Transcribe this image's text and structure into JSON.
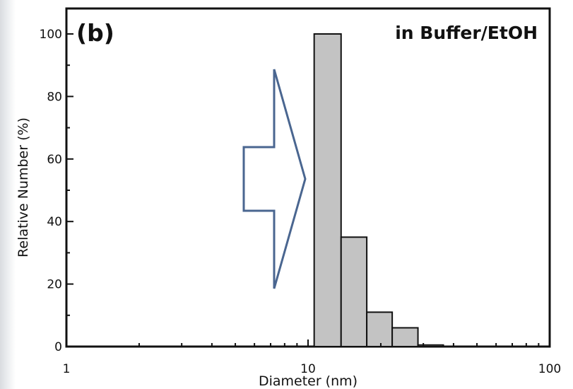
{
  "chart_data": {
    "type": "bar",
    "panel_label": "(b)",
    "annotation": "in Buffer/EtOH",
    "xlabel": "Diameter (nm)",
    "ylabel": "Relative Number (%)",
    "x_scale": "log",
    "xlim": [
      1,
      100
    ],
    "ylim": [
      0,
      105
    ],
    "x_ticks": [
      1,
      10,
      100
    ],
    "y_ticks": [
      0,
      20,
      40,
      60,
      80,
      100
    ],
    "grid": false,
    "bins": [
      {
        "from": 10.6,
        "to": 13.7,
        "value": 100
      },
      {
        "from": 13.7,
        "to": 17.5,
        "value": 35
      },
      {
        "from": 17.5,
        "to": 22.3,
        "value": 11
      },
      {
        "from": 22.3,
        "to": 28.5,
        "value": 6
      },
      {
        "from": 28.5,
        "to": 36.3,
        "value": 0.5
      }
    ],
    "bar_color": "#c3c3c3",
    "arrow_color": "#4a6690"
  }
}
